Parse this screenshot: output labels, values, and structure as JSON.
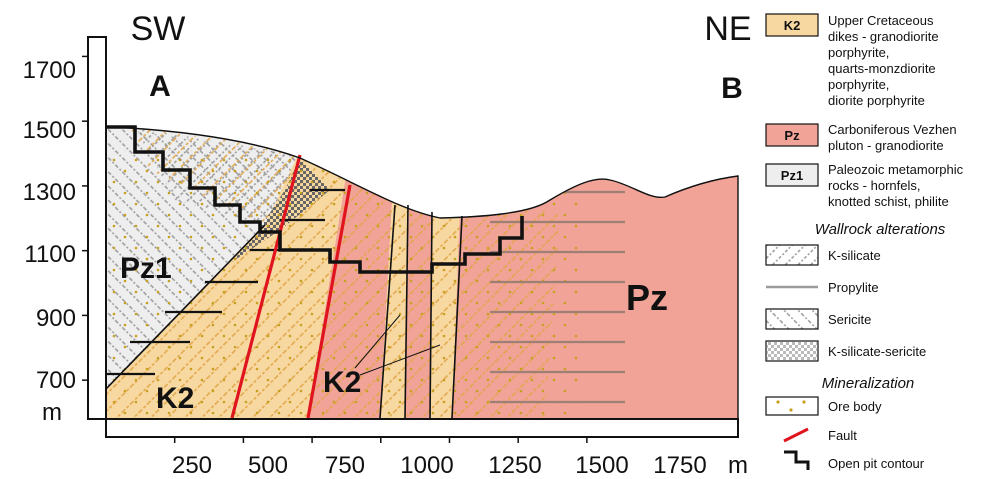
{
  "section": {
    "left_end": "A",
    "right_end": "B",
    "left_direction": "SW",
    "right_direction": "NE",
    "y_axis": {
      "ticks": [
        "1700",
        "1500",
        "1300",
        "1100",
        "900",
        "700"
      ],
      "unit": "m",
      "range": [
        580,
        1760
      ]
    },
    "x_axis": {
      "ticks": [
        "250",
        "500",
        "750",
        "1000",
        "1250",
        "1500",
        "1750"
      ],
      "unit": "m",
      "range": [
        0,
        2300
      ]
    },
    "unit_labels": {
      "pz1": "Pz1",
      "k2_left": "K2",
      "k2_center": "K2",
      "pz_right": "Pz"
    }
  },
  "legend": {
    "units": [
      {
        "code": "K2",
        "color": "#f7d8a0",
        "text": [
          "Upper Cretaceous",
          "dikes - granodiorite",
          "porphyrite,",
          "quarts-monzdiorite",
          "porphyrite,",
          "diorite porphyrite"
        ]
      },
      {
        "code": "Pz",
        "color": "#f0a396",
        "text": [
          "Carboniferous Vezhen",
          "pluton - granodiorite"
        ]
      },
      {
        "code": "Pz1",
        "color": "#eeeeee",
        "text": [
          "Paleozoic metamorphic",
          "rocks - hornfels,",
          "knotted schist, philite"
        ]
      }
    ],
    "alterations_heading": "Wallrock alterations",
    "alterations": [
      {
        "name": "K-silicate",
        "icon": "k-silicate-pattern-icon"
      },
      {
        "name": "Propylite",
        "icon": "propylite-pattern-icon"
      },
      {
        "name": "Sericite",
        "icon": "sericite-pattern-icon"
      },
      {
        "name": "K-silicate-sericite",
        "icon": "k-silicate-sericite-pattern-icon"
      }
    ],
    "mineralization_heading": "Mineralization",
    "mineralization": [
      {
        "name": "Ore body",
        "icon": "ore-body-pattern-icon"
      },
      {
        "name": "Fault",
        "icon": "fault-line-icon"
      },
      {
        "name": "Open pit contour",
        "icon": "open-pit-contour-icon"
      }
    ],
    "colors": {
      "k2": "#f7d8a0",
      "pz": "#f0a396",
      "pz1": "#eeeeee",
      "fault": "#e0141e",
      "ore": "#c8a020"
    }
  }
}
